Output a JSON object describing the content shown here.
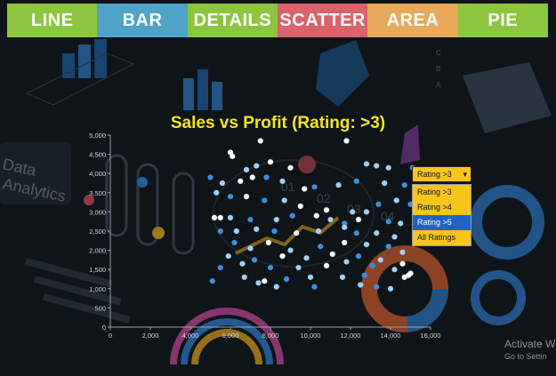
{
  "tabs": [
    {
      "label": "LINE",
      "color": "#8cc63f"
    },
    {
      "label": "BAR",
      "color": "#4fa3c7"
    },
    {
      "label": "DETAILS",
      "color": "#8cc63f"
    },
    {
      "label": "SCATTER",
      "color": "#d9626b"
    },
    {
      "label": "AREA",
      "color": "#e8a85a"
    },
    {
      "label": "PIE",
      "color": "#8cc63f"
    }
  ],
  "background": {
    "decor_text": [
      "Data",
      "Analytics",
      "01",
      "02",
      "03",
      "04"
    ]
  },
  "rating_filter": {
    "selected": "Rating >3",
    "options": [
      "Rating >3",
      "Rating >4",
      "Rating >5",
      "All Ratings"
    ],
    "highlighted": "Rating >5"
  },
  "chart_data": {
    "type": "scatter",
    "title": "Sales vs Profit (Rating: >3)",
    "xlim": [
      0,
      16000
    ],
    "ylim": [
      0,
      5000
    ],
    "xticks": [
      "0",
      "2,000",
      "4,000",
      "6,000",
      "8,000",
      "10,000",
      "12,000",
      "14,000",
      "16,000"
    ],
    "yticks": [
      "0",
      "500",
      "1,000",
      "1,500",
      "2,000",
      "2,500",
      "3,000",
      "3,500",
      "4,000",
      "4,500",
      "5,000"
    ],
    "grid": false,
    "colors": {
      "light": "#ffffff",
      "mid": "#9fd0f5",
      "dark": "#3a8fe0",
      "title": "#f6e61a",
      "axis": "#cfd6de"
    },
    "points": [
      [
        7500,
        4850,
        "light"
      ],
      [
        11800,
        4850,
        "light"
      ],
      [
        6000,
        4550,
        "light"
      ],
      [
        6100,
        4450,
        "light"
      ],
      [
        7300,
        4200,
        "mid"
      ],
      [
        9000,
        4150,
        "light"
      ],
      [
        6800,
        4100,
        "mid"
      ],
      [
        8000,
        4300,
        "light"
      ],
      [
        12800,
        4250,
        "mid"
      ],
      [
        13300,
        4200,
        "mid"
      ],
      [
        13900,
        4150,
        "mid"
      ],
      [
        15100,
        4150,
        "dark"
      ],
      [
        5000,
        3900,
        "dark"
      ],
      [
        5600,
        3750,
        "mid"
      ],
      [
        6500,
        3800,
        "light"
      ],
      [
        7100,
        3900,
        "light"
      ],
      [
        7800,
        3900,
        "dark"
      ],
      [
        8600,
        3800,
        "mid"
      ],
      [
        9700,
        3600,
        "light"
      ],
      [
        10200,
        3650,
        "dark"
      ],
      [
        11400,
        3700,
        "mid"
      ],
      [
        12300,
        3800,
        "dark"
      ],
      [
        13700,
        3750,
        "mid"
      ],
      [
        14700,
        3700,
        "dark"
      ],
      [
        5300,
        3500,
        "mid"
      ],
      [
        6000,
        3400,
        "dark"
      ],
      [
        6800,
        3400,
        "light"
      ],
      [
        7700,
        3300,
        "dark"
      ],
      [
        8700,
        3300,
        "mid"
      ],
      [
        9500,
        3150,
        "light"
      ],
      [
        10800,
        3050,
        "light"
      ],
      [
        12100,
        3000,
        "mid"
      ],
      [
        12800,
        3000,
        "mid"
      ],
      [
        13400,
        3200,
        "dark"
      ],
      [
        14300,
        3300,
        "mid"
      ],
      [
        15000,
        3200,
        "dark"
      ],
      [
        5200,
        2850,
        "light"
      ],
      [
        5500,
        2850,
        "light"
      ],
      [
        6000,
        2850,
        "mid"
      ],
      [
        7000,
        2800,
        "dark"
      ],
      [
        8300,
        2800,
        "mid"
      ],
      [
        9100,
        2900,
        "dark"
      ],
      [
        10300,
        2900,
        "light"
      ],
      [
        11000,
        2800,
        "mid"
      ],
      [
        11700,
        2700,
        "dark"
      ],
      [
        12400,
        2800,
        "light"
      ],
      [
        13900,
        2750,
        "dark"
      ],
      [
        14500,
        2700,
        "mid"
      ],
      [
        5500,
        2500,
        "dark"
      ],
      [
        6300,
        2500,
        "mid"
      ],
      [
        7300,
        2550,
        "mid"
      ],
      [
        8200,
        2500,
        "dark"
      ],
      [
        9300,
        2450,
        "light"
      ],
      [
        10400,
        2500,
        "mid"
      ],
      [
        11700,
        2600,
        "mid"
      ],
      [
        12300,
        2450,
        "dark"
      ],
      [
        13300,
        2450,
        "mid"
      ],
      [
        14200,
        2350,
        "mid"
      ],
      [
        15300,
        2450,
        "dark"
      ],
      [
        6200,
        2200,
        "dark"
      ],
      [
        7000,
        2050,
        "mid"
      ],
      [
        7900,
        2200,
        "light"
      ],
      [
        9000,
        2000,
        "mid"
      ],
      [
        10500,
        2100,
        "dark"
      ],
      [
        11700,
        2200,
        "light"
      ],
      [
        12800,
        2150,
        "mid"
      ],
      [
        13900,
        2100,
        "dark"
      ],
      [
        14600,
        1950,
        "mid"
      ],
      [
        5900,
        1850,
        "mid"
      ],
      [
        7200,
        1750,
        "dark"
      ],
      [
        8600,
        1850,
        "light"
      ],
      [
        9800,
        1800,
        "mid"
      ],
      [
        11100,
        1900,
        "light"
      ],
      [
        12400,
        1850,
        "dark"
      ],
      [
        13500,
        1750,
        "mid"
      ],
      [
        14600,
        1650,
        "light"
      ],
      [
        5500,
        1550,
        "dark"
      ],
      [
        6600,
        1650,
        "mid"
      ],
      [
        8000,
        1550,
        "dark"
      ],
      [
        9400,
        1550,
        "mid"
      ],
      [
        10800,
        1600,
        "light"
      ],
      [
        11800,
        1700,
        "mid"
      ],
      [
        13100,
        1600,
        "dark"
      ],
      [
        14200,
        1500,
        "mid"
      ],
      [
        15000,
        1400,
        "light"
      ],
      [
        5100,
        1200,
        "dark"
      ],
      [
        6700,
        1300,
        "mid"
      ],
      [
        7700,
        1200,
        "light"
      ],
      [
        8800,
        1250,
        "dark"
      ],
      [
        10000,
        1300,
        "mid"
      ],
      [
        11600,
        1300,
        "mid"
      ],
      [
        12700,
        1350,
        "dark"
      ],
      [
        14700,
        1300,
        "light"
      ],
      [
        14900,
        1350,
        "light"
      ],
      [
        7400,
        1150,
        "mid"
      ],
      [
        8300,
        1050,
        "mid"
      ],
      [
        10200,
        1050,
        "dark"
      ],
      [
        12500,
        1100,
        "mid"
      ],
      [
        13300,
        1050,
        "dark"
      ],
      [
        14000,
        1000,
        "mid"
      ]
    ]
  },
  "watermark": {
    "line1": "Activate W",
    "line2": "Go to Settin"
  }
}
